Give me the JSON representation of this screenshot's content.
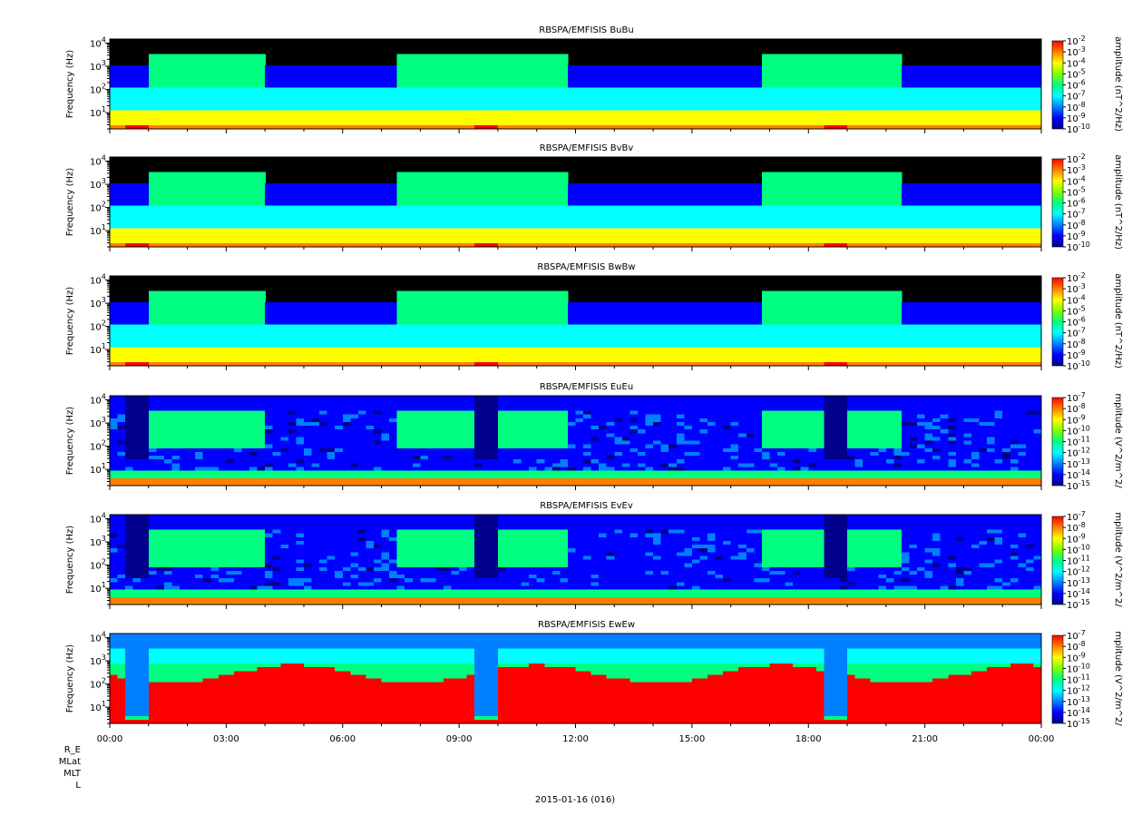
{
  "chart_data": {
    "type": "heatmap",
    "date_label": "2015-01-16 (016)",
    "x_range": [
      "00:00",
      "24:00"
    ],
    "x_ticks": [
      "00:00",
      "03:00",
      "06:00",
      "09:00",
      "12:00",
      "15:00",
      "18:00",
      "21:00",
      "00:00"
    ],
    "ephemeris_labels": [
      "R_E",
      "MLat",
      "MLT",
      "L"
    ],
    "colormap": [
      "#00008c",
      "#0000ff",
      "#0080ff",
      "#00ffff",
      "#00ff80",
      "#ffff00",
      "#ff8000",
      "#ff0000"
    ],
    "panels": [
      {
        "title": "RBSPA/EMFISIS  BuBu",
        "ylabel": "Frequency (Hz)",
        "yscale": "log",
        "ylim": [
          2,
          15000
        ],
        "yticks": [
          {
            "base": "10",
            "exp": "1"
          },
          {
            "base": "10",
            "exp": "2"
          },
          {
            "base": "10",
            "exp": "3"
          },
          {
            "base": "10",
            "exp": "4"
          }
        ],
        "colorbar_label": "amplitude (nT^2/Hz)",
        "colorbar_ticks": [
          "10-2",
          "10-3",
          "10-4",
          "10-5",
          "10-6",
          "10-7",
          "10-8",
          "10-9",
          "10-10"
        ]
      },
      {
        "title": "RBSPA/EMFISIS  BvBv",
        "ylabel": "Frequency (Hz)",
        "yscale": "log",
        "ylim": [
          2,
          15000
        ],
        "yticks": [
          {
            "base": "10",
            "exp": "1"
          },
          {
            "base": "10",
            "exp": "2"
          },
          {
            "base": "10",
            "exp": "3"
          },
          {
            "base": "10",
            "exp": "4"
          }
        ],
        "colorbar_label": "amplitude (nT^2/Hz)",
        "colorbar_ticks": [
          "10-2",
          "10-3",
          "10-4",
          "10-5",
          "10-6",
          "10-7",
          "10-8",
          "10-9",
          "10-10"
        ]
      },
      {
        "title": "RBSPA/EMFISIS  BwBw",
        "ylabel": "Frequency (Hz)",
        "yscale": "log",
        "ylim": [
          2,
          15000
        ],
        "yticks": [
          {
            "base": "10",
            "exp": "1"
          },
          {
            "base": "10",
            "exp": "2"
          },
          {
            "base": "10",
            "exp": "3"
          },
          {
            "base": "10",
            "exp": "4"
          }
        ],
        "colorbar_label": "amplitude (nT^2/Hz)",
        "colorbar_ticks": [
          "10-2",
          "10-3",
          "10-4",
          "10-5",
          "10-6",
          "10-7",
          "10-8",
          "10-9",
          "10-10"
        ]
      },
      {
        "title": "RBSPA/EMFISIS  EuEu",
        "ylabel": "Frequency (Hz)",
        "yscale": "log",
        "ylim": [
          2,
          15000
        ],
        "yticks": [
          {
            "base": "10",
            "exp": "1"
          },
          {
            "base": "10",
            "exp": "2"
          },
          {
            "base": "10",
            "exp": "3"
          },
          {
            "base": "10",
            "exp": "4"
          }
        ],
        "colorbar_label": "mplitude (V^2/m^2/",
        "colorbar_ticks": [
          "10-7",
          "10-8",
          "10-9",
          "10-10",
          "10-11",
          "10-12",
          "10-13",
          "10-14",
          "10-15"
        ]
      },
      {
        "title": "RBSPA/EMFISIS  EvEv",
        "ylabel": "Frequency (Hz)",
        "yscale": "log",
        "ylim": [
          2,
          15000
        ],
        "yticks": [
          {
            "base": "10",
            "exp": "1"
          },
          {
            "base": "10",
            "exp": "2"
          },
          {
            "base": "10",
            "exp": "3"
          },
          {
            "base": "10",
            "exp": "4"
          }
        ],
        "colorbar_label": "mplitude (V^2/m^2/",
        "colorbar_ticks": [
          "10-7",
          "10-8",
          "10-9",
          "10-10",
          "10-11",
          "10-12",
          "10-13",
          "10-14",
          "10-15"
        ]
      },
      {
        "title": "RBSPA/EMFISIS  EwEw",
        "ylabel": "Frequency (Hz)",
        "yscale": "log",
        "ylim": [
          2,
          15000
        ],
        "yticks": [
          {
            "base": "10",
            "exp": "1"
          },
          {
            "base": "10",
            "exp": "2"
          },
          {
            "base": "10",
            "exp": "3"
          },
          {
            "base": "10",
            "exp": "4"
          }
        ],
        "colorbar_label": "mplitude (V^2/m^2/",
        "colorbar_ticks": [
          "10-7",
          "10-8",
          "10-9",
          "10-10",
          "10-11",
          "10-12",
          "10-13",
          "10-14",
          "10-15"
        ]
      }
    ]
  }
}
